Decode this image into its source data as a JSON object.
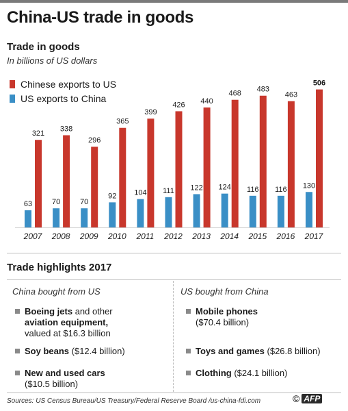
{
  "title": "China-US trade in goods",
  "chart_data": {
    "type": "bar",
    "title": "Trade in goods",
    "subtitle": "In billions of US dollars",
    "categories": [
      "2007",
      "2008",
      "2009",
      "2010",
      "2011",
      "2012",
      "2013",
      "2014",
      "2015",
      "2016",
      "2017"
    ],
    "series": [
      {
        "name": "Chinese exports to US",
        "color": "#c8372c",
        "values": [
          321,
          338,
          296,
          365,
          399,
          426,
          440,
          468,
          483,
          463,
          506
        ]
      },
      {
        "name": "US exports to China",
        "color": "#3a8fc6",
        "values": [
          63,
          70,
          70,
          92,
          104,
          111,
          122,
          124,
          116,
          116,
          130
        ]
      }
    ],
    "ylim": [
      0,
      520
    ],
    "grid": false,
    "legend_position": "top-left"
  },
  "highlights": {
    "title": "Trade highlights 2017",
    "china_bought": {
      "heading": "China bought from US",
      "items": [
        {
          "bold1": "Boeing jets",
          "text1": " and other ",
          "bold2": "aviation equipment,",
          "text2": "valued at $16.3 billion"
        },
        {
          "bold1": "Soy beans",
          "text1": " ($12.4 billion)"
        },
        {
          "bold1": "New and used cars",
          "text2": "($10.5 billion)"
        }
      ]
    },
    "us_bought": {
      "heading": "US bought from China",
      "items": [
        {
          "bold1": "Mobile phones",
          "text2": "($70.4 billion)"
        },
        {
          "bold1": "Toys and games",
          "text1": " ($26.8 billion)"
        },
        {
          "bold1": "Clothing",
          "text1": " ($24.1 billion)"
        }
      ]
    }
  },
  "footer": {
    "sources": "Sources: US Census Bureau/US Treasury/Federal Reserve Board /us-china-fdi.com",
    "copyright": "©",
    "logo": "AFP"
  }
}
